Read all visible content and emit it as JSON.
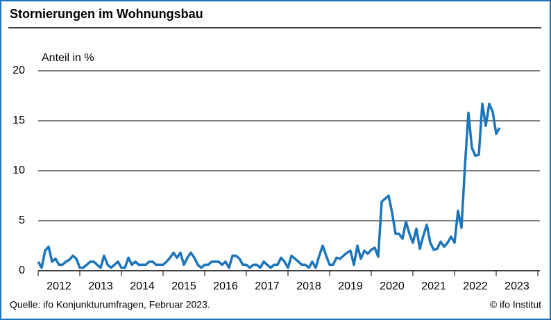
{
  "chart_data": {
    "type": "line",
    "title": "Stornierungen im Wohnungsbau",
    "y_label": "Anteil in %",
    "source": "Quelle: ifo Konjunkturumfragen, Februar 2023.",
    "credit": "© ifo Institut",
    "x": [
      2012,
      2012.083,
      2012.167,
      2012.25,
      2012.333,
      2012.417,
      2012.5,
      2012.583,
      2012.667,
      2012.75,
      2012.833,
      2012.917,
      2013,
      2013.083,
      2013.167,
      2013.25,
      2013.333,
      2013.417,
      2013.5,
      2013.583,
      2013.667,
      2013.75,
      2013.833,
      2013.917,
      2014,
      2014.083,
      2014.167,
      2014.25,
      2014.333,
      2014.417,
      2014.5,
      2014.583,
      2014.667,
      2014.75,
      2014.833,
      2014.917,
      2015,
      2015.083,
      2015.167,
      2015.25,
      2015.333,
      2015.417,
      2015.5,
      2015.583,
      2015.667,
      2015.75,
      2015.833,
      2015.917,
      2016,
      2016.083,
      2016.167,
      2016.25,
      2016.333,
      2016.417,
      2016.5,
      2016.583,
      2016.667,
      2016.75,
      2016.833,
      2016.917,
      2017,
      2017.083,
      2017.167,
      2017.25,
      2017.333,
      2017.417,
      2017.5,
      2017.583,
      2017.667,
      2017.75,
      2017.833,
      2017.917,
      2018,
      2018.083,
      2018.167,
      2018.25,
      2018.333,
      2018.417,
      2018.5,
      2018.583,
      2018.667,
      2018.75,
      2018.833,
      2018.917,
      2019,
      2019.083,
      2019.167,
      2019.25,
      2019.333,
      2019.417,
      2019.5,
      2019.583,
      2019.667,
      2019.75,
      2019.833,
      2019.917,
      2020,
      2020.083,
      2020.167,
      2020.25,
      2020.333,
      2020.417,
      2020.5,
      2020.583,
      2020.667,
      2020.75,
      2020.833,
      2020.917,
      2021,
      2021.083,
      2021.167,
      2021.25,
      2021.333,
      2021.417,
      2021.5,
      2021.583,
      2021.667,
      2021.75,
      2021.833,
      2021.917,
      2022,
      2022.083,
      2022.167,
      2022.25,
      2022.333,
      2022.417,
      2022.5,
      2022.583,
      2022.667,
      2022.75,
      2022.833,
      2022.917,
      2023,
      2023.083
    ],
    "series": [
      {
        "name": "Stornierungen",
        "color": "#1b75bc",
        "values": [
          0.9,
          0.3,
          2.0,
          2.4,
          0.9,
          1.2,
          0.6,
          0.6,
          0.9,
          1.1,
          1.5,
          1.2,
          0.3,
          0.3,
          0.6,
          0.9,
          0.9,
          0.6,
          0.3,
          1.5,
          0.6,
          0.3,
          0.6,
          0.9,
          0.3,
          0.3,
          1.3,
          0.6,
          0.9,
          0.6,
          0.6,
          0.6,
          0.9,
          0.9,
          0.6,
          0.6,
          0.6,
          0.9,
          1.3,
          1.8,
          1.3,
          1.8,
          0.6,
          1.3,
          1.8,
          1.3,
          0.6,
          0.3,
          0.6,
          0.6,
          0.9,
          0.9,
          0.9,
          0.6,
          0.9,
          0.3,
          1.5,
          1.5,
          1.2,
          0.6,
          0.6,
          0.3,
          0.6,
          0.6,
          0.3,
          0.9,
          0.6,
          0.3,
          0.6,
          0.6,
          1.3,
          0.9,
          0.3,
          1.5,
          1.2,
          0.9,
          0.6,
          0.6,
          0.3,
          0.9,
          0.3,
          1.5,
          2.5,
          1.5,
          0.6,
          0.6,
          1.3,
          1.2,
          1.5,
          1.8,
          2.0,
          0.6,
          2.5,
          1.2,
          2.0,
          1.7,
          2.1,
          2.3,
          1.4,
          6.9,
          7.2,
          7.5,
          5.8,
          3.7,
          3.7,
          3.2,
          4.9,
          3.7,
          2.8,
          4.2,
          2.2,
          3.5,
          4.6,
          2.8,
          2.1,
          2.2,
          2.9,
          2.4,
          2.8,
          3.4,
          2.8,
          6.0,
          4.3,
          10.5,
          15.8,
          12.3,
          11.5,
          11.6,
          16.7,
          14.5,
          16.7,
          15.9,
          13.7,
          14.3
        ]
      }
    ],
    "xlim": [
      2012,
      2024
    ],
    "xticks": [
      {
        "value": 2012.5,
        "label": "2012"
      },
      {
        "value": 2013.5,
        "label": "2013"
      },
      {
        "value": 2014.5,
        "label": "2014"
      },
      {
        "value": 2015.5,
        "label": "2015"
      },
      {
        "value": 2016.5,
        "label": "2016"
      },
      {
        "value": 2017.5,
        "label": "2017"
      },
      {
        "value": 2018.5,
        "label": "2018"
      },
      {
        "value": 2019.5,
        "label": "2019"
      },
      {
        "value": 2020.5,
        "label": "2020"
      },
      {
        "value": 2021.5,
        "label": "2021"
      },
      {
        "value": 2022.5,
        "label": "2022"
      },
      {
        "value": 2023.5,
        "label": "2023"
      }
    ],
    "ylim": [
      0,
      20
    ],
    "yticks": [
      0,
      5,
      10,
      15,
      20
    ],
    "grid": true
  }
}
